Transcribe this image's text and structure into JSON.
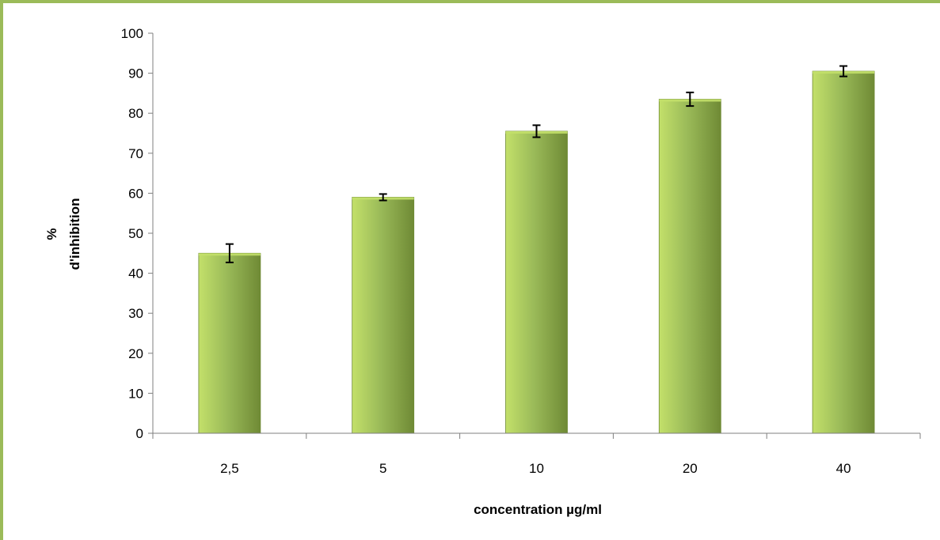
{
  "colors": {
    "frame_border": "#9bbb59",
    "bar_light": "#c3e06a",
    "bar_mid": "#9bbb59",
    "bar_dark": "#6f8a35",
    "axis": "#7f7f7f",
    "error_bar": "#000000"
  },
  "chart_data": {
    "type": "bar",
    "categories": [
      "2,5",
      "5",
      "10",
      "20",
      "40"
    ],
    "values": [
      45,
      59,
      75.5,
      83.5,
      90.5
    ],
    "error": [
      2.3,
      0.8,
      1.5,
      1.7,
      1.3
    ],
    "xlabel": "concentration µg/ml",
    "ylabel_lines": [
      "%",
      "d'inhibition"
    ],
    "ylim": [
      0,
      100
    ],
    "yticks": [
      0,
      10,
      20,
      30,
      40,
      50,
      60,
      70,
      80,
      90,
      100
    ],
    "grid": false,
    "legend": false
  }
}
